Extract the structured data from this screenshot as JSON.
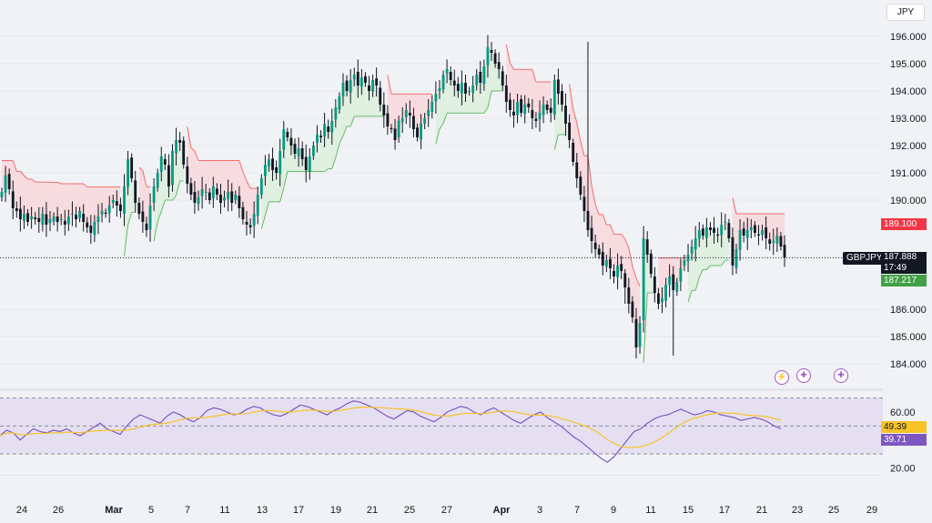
{
  "currency": "JPY",
  "symbol": "GBPJPY",
  "last_price": "187.888",
  "countdown": "17:49",
  "upper_badge": "189.100",
  "lower_badge": "187.217",
  "rsi_value_yellow": "49.39",
  "rsi_value_purple": "39.71",
  "colors": {
    "up_candle": "#089981",
    "down_candle": "#f23645",
    "candle_body_dark": "#131722",
    "red_band_fill": "#f8d7da",
    "green_band_fill": "#dcefdc",
    "red_line": "#f26b6b",
    "green_line": "#66bb6a",
    "rsi_line": "#7e57c2",
    "rsi_ma": "#f7c325",
    "rsi_band": "#e4e0f2"
  },
  "event_icons": [
    "lightning-icon",
    "uk-flag-icon",
    "uk-flag-icon"
  ],
  "chart_data": [
    {
      "type": "candlestick",
      "title": "",
      "price_ticks": [
        "196.000",
        "195.000",
        "194.000",
        "193.000",
        "192.000",
        "191.000",
        "190.000",
        "186.000",
        "185.000",
        "184.000"
      ],
      "ylim": [
        183.5,
        196.5
      ],
      "x_ticks": [
        "24",
        "26",
        "Mar",
        "5",
        "7",
        "11",
        "13",
        "17",
        "19",
        "21",
        "25",
        "27",
        "Apr",
        "3",
        "7",
        "9",
        "11",
        "15",
        "17",
        "21",
        "23",
        "25",
        "29"
      ],
      "close_path": [
        190.3,
        190.9,
        190.4,
        189.7,
        189.6,
        189.3,
        189.5,
        189.2,
        189.4,
        189.3,
        189.2,
        189.5,
        189.1,
        189.3,
        189.4,
        189.2,
        189.3,
        189.1,
        189.4,
        189.5,
        189.3,
        189.6,
        189.2,
        189.0,
        188.8,
        189.2,
        189.4,
        189.6,
        189.5,
        189.8,
        190.0,
        189.8,
        189.6,
        190.5,
        191.5,
        190.8,
        189.9,
        189.5,
        189.2,
        188.9,
        189.8,
        190.5,
        191.0,
        191.6,
        191.3,
        190.5,
        191.8,
        192.2,
        192.1,
        191.3,
        190.6,
        190.2,
        189.9,
        190.1,
        190.4,
        190.3,
        190.0,
        190.5,
        190.2,
        189.9,
        190.1,
        190.3,
        189.9,
        190.2,
        189.7,
        189.3,
        189.1,
        189.0,
        189.5,
        190.2,
        190.8,
        191.3,
        191.5,
        191.1,
        191.0,
        191.8,
        192.6,
        192.3,
        192.0,
        191.7,
        191.9,
        191.5,
        191.1,
        191.6,
        192.0,
        192.4,
        192.3,
        192.8,
        192.5,
        192.9,
        193.4,
        193.8,
        194.3,
        194.0,
        194.4,
        194.6,
        194.2,
        194.5,
        194.3,
        194.0,
        194.4,
        194.2,
        193.5,
        193.1,
        192.7,
        192.6,
        192.2,
        192.9,
        193.0,
        193.3,
        193.1,
        192.6,
        192.3,
        192.8,
        193.0,
        193.3,
        193.6,
        193.9,
        194.1,
        194.6,
        194.8,
        194.4,
        194.2,
        194.0,
        194.3,
        193.9,
        194.0,
        194.2,
        194.6,
        194.3,
        194.9,
        195.6,
        195.4,
        195.0,
        194.8,
        194.2,
        193.6,
        193.3,
        193.1,
        193.6,
        193.2,
        193.5,
        193.4,
        193.0,
        192.9,
        193.2,
        193.5,
        193.3,
        193.2,
        194.4,
        193.9,
        193.5,
        192.8,
        192.2,
        191.4,
        190.8,
        190.2,
        189.6,
        188.9,
        188.5,
        188.2,
        188.0,
        187.6,
        187.8,
        187.5,
        187.2,
        187.6,
        187.4,
        186.8,
        186.2,
        185.7,
        184.6,
        185.5,
        188.6,
        188.0,
        187.3,
        186.6,
        186.2,
        186.4,
        186.9,
        187.2,
        186.7,
        187.0,
        187.5,
        187.8,
        188.0,
        188.3,
        188.6,
        188.9,
        188.7,
        189.0,
        188.9,
        188.8,
        188.7,
        189.1,
        189.2,
        188.6,
        187.6,
        188.2,
        188.9,
        188.7,
        188.9,
        189.0,
        188.8,
        188.7,
        188.9,
        188.6,
        188.4,
        188.5,
        188.7,
        188.3,
        187.9
      ]
    },
    {
      "type": "line",
      "title": "",
      "y_ticks": [
        "60.00",
        "20.00"
      ],
      "ylim": [
        15,
        75
      ],
      "band": [
        30,
        70
      ],
      "series": [
        {
          "values": [
            43,
            47,
            45,
            40,
            44,
            48,
            46,
            45,
            47,
            46,
            48,
            45,
            43,
            46,
            49,
            52,
            48,
            46,
            44,
            50,
            55,
            58,
            56,
            54,
            52,
            57,
            60,
            58,
            55,
            53,
            56,
            61,
            63,
            62,
            60,
            58,
            59,
            62,
            64,
            63,
            60,
            58,
            57,
            59,
            62,
            65,
            64,
            62,
            60,
            58,
            61,
            63,
            66,
            68,
            67,
            65,
            63,
            60,
            57,
            55,
            58,
            61,
            60,
            57,
            55,
            53,
            56,
            60,
            62,
            64,
            63,
            60,
            58,
            61,
            63,
            60,
            57,
            54,
            52,
            55,
            58,
            60,
            56,
            53,
            50,
            46,
            42,
            39,
            35,
            31,
            27,
            24,
            28,
            34,
            40,
            46,
            48,
            52,
            55,
            57,
            58,
            60,
            62,
            60,
            58,
            59,
            61,
            60,
            58,
            57,
            56,
            54,
            55,
            56,
            55,
            53,
            50,
            48
          ]
        }
      ]
    }
  ]
}
